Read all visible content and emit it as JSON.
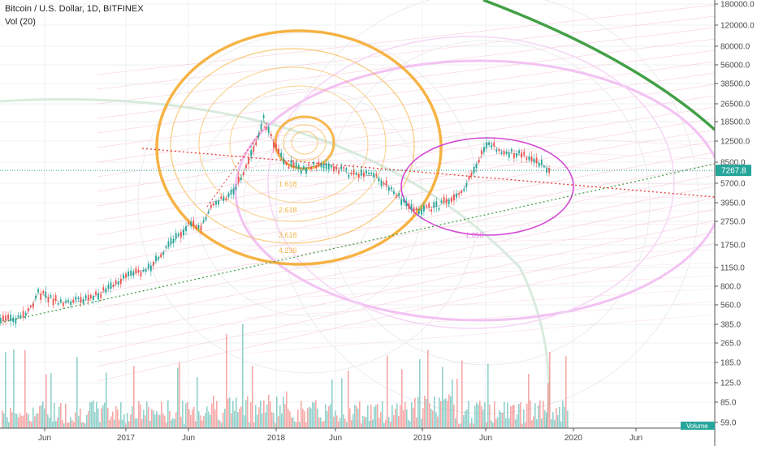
{
  "chart_data": {
    "type": "candlestick",
    "title": "Bitcoin / U.S. Dollar, 1D, BITFINEX",
    "volume_label": "Vol (20)",
    "price_axis": {
      "scale": "log",
      "ticks": [
        "180000.0",
        "120000.0",
        "80000.0",
        "56000.0",
        "38500.0",
        "26500.0",
        "18500.0",
        "12500.0",
        "8500.0",
        "5700.0",
        "3950.0",
        "2750.0",
        "1750.0",
        "1150.0",
        "800.0",
        "560.0",
        "385.0",
        "265.0",
        "185.0",
        "125.0",
        "85.0",
        "59.0"
      ]
    },
    "time_axis": {
      "ticks": [
        "Jun",
        "2017",
        "Jun",
        "2018",
        "Jun",
        "2019",
        "Jun",
        "2020",
        "Jun"
      ]
    },
    "current_price": {
      "value": 7267.8,
      "label": "7267.8",
      "color": "#26a69a"
    },
    "volume_tag": "Volume",
    "fib_labels": [
      "1.618",
      "2.618",
      "3.618",
      "4.236",
      "1.618"
    ],
    "colors": {
      "up": "#26a69a",
      "down": "#ef5350",
      "fib_orange": "#f5a623",
      "fib_pink": "#e879e8",
      "arc_green": "#43a047",
      "trend_green": "#43a047",
      "trend_red": "#e53935"
    },
    "price_series": [
      {
        "t": "2016-03",
        "close": 410
      },
      {
        "t": "2016-05",
        "close": 450
      },
      {
        "t": "2016-06",
        "close": 700
      },
      {
        "t": "2016-08",
        "close": 580
      },
      {
        "t": "2016-10",
        "close": 620
      },
      {
        "t": "2016-12",
        "close": 800
      },
      {
        "t": "2017-01",
        "close": 950
      },
      {
        "t": "2017-03",
        "close": 1150
      },
      {
        "t": "2017-05",
        "close": 2000
      },
      {
        "t": "2017-06",
        "close": 2600
      },
      {
        "t": "2017-07",
        "close": 2500
      },
      {
        "t": "2017-08",
        "close": 4000
      },
      {
        "t": "2017-09",
        "close": 4200
      },
      {
        "t": "2017-10",
        "close": 5800
      },
      {
        "t": "2017-11",
        "close": 9500
      },
      {
        "t": "2017-12",
        "close": 19000
      },
      {
        "t": "2018-01",
        "close": 11000
      },
      {
        "t": "2018-02",
        "close": 8000
      },
      {
        "t": "2018-03",
        "close": 7500
      },
      {
        "t": "2018-05",
        "close": 8200
      },
      {
        "t": "2018-07",
        "close": 6800
      },
      {
        "t": "2018-09",
        "close": 6500
      },
      {
        "t": "2018-11",
        "close": 4200
      },
      {
        "t": "2018-12",
        "close": 3400
      },
      {
        "t": "2019-02",
        "close": 3700
      },
      {
        "t": "2019-04",
        "close": 5000
      },
      {
        "t": "2019-05",
        "close": 8200
      },
      {
        "t": "2019-06",
        "close": 12500
      },
      {
        "t": "2019-07",
        "close": 10500
      },
      {
        "t": "2019-08",
        "close": 10000
      },
      {
        "t": "2019-09",
        "close": 9500
      },
      {
        "t": "2019-10",
        "close": 8300
      },
      {
        "t": "2019-11",
        "close": 7267.8
      }
    ]
  }
}
